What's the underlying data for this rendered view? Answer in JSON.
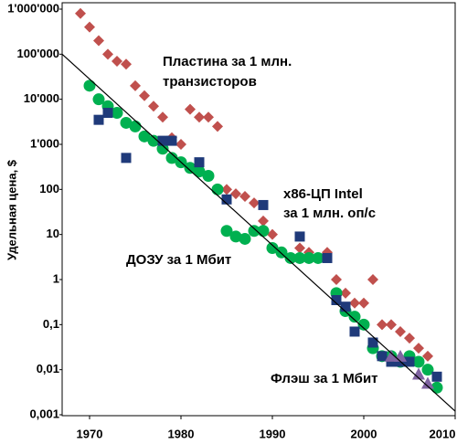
{
  "chart_data": {
    "type": "scatter",
    "ylabel": "Удельная цена, $",
    "log_y": true,
    "xlim": [
      1967,
      2010
    ],
    "ylim": [
      0.001,
      1000000
    ],
    "xticks": [
      1970,
      1980,
      1990,
      2000,
      2010
    ],
    "yticks": [
      {
        "value": 1000000,
        "label": "1'000'000"
      },
      {
        "value": 100000,
        "label": "100'000"
      },
      {
        "value": 10000,
        "label": "10'000"
      },
      {
        "value": 1000,
        "label": "1'000"
      },
      100,
      10,
      1,
      {
        "value": 0.1,
        "label": "0,1"
      },
      {
        "value": 0.01,
        "label": "0,01"
      },
      {
        "value": 0.001,
        "label": "0,001"
      }
    ],
    "annotations": [
      {
        "text": "Пластина за 1 млн.",
        "color": "#c0504d"
      },
      {
        "text": "транзисторов",
        "color": "#c0504d"
      },
      {
        "text": "x86-ЦП Intel",
        "color": "#1f3a7a"
      },
      {
        "text": "за 1 млн. оп/с",
        "color": "#1f3a7a"
      },
      {
        "text": "ДОЗУ за 1 Мбит",
        "color": "#00b050"
      },
      {
        "text": "Флэш за 1 Мбит",
        "color": "#8064a2"
      }
    ],
    "series": [
      {
        "marker": "diamond",
        "color": "#c0504d",
        "x": [
          1969,
          1970,
          1971,
          1972,
          1973,
          1974,
          1975,
          1976,
          1977,
          1978,
          1979,
          1980,
          1981,
          1982,
          1983,
          1984,
          1985,
          1986,
          1987,
          1988,
          1989,
          1990,
          1993,
          1994,
          1995,
          1996,
          1997,
          1998,
          1999,
          2000,
          2001,
          2002,
          2003,
          2004,
          2005,
          2006,
          2007
        ],
        "values": [
          800000,
          400000,
          200000,
          100000,
          70000,
          60000,
          20000,
          12000,
          7000,
          4000,
          1400,
          1000,
          6000,
          4000,
          4000,
          2500,
          100,
          80,
          70,
          50,
          20,
          10,
          5,
          4,
          3,
          4,
          1,
          0.5,
          0.3,
          0.3,
          1,
          0.1,
          0.1,
          0.07,
          0.05,
          0.03,
          0.02
        ]
      },
      {
        "marker": "circle",
        "color": "#00b050",
        "x": [
          1970,
          1971,
          1972,
          1973,
          1974,
          1975,
          1976,
          1977,
          1978,
          1979,
          1980,
          1981,
          1982,
          1983,
          1984,
          1985,
          1986,
          1987,
          1988,
          1989,
          1990,
          1991,
          1992,
          1993,
          1994,
          1995,
          1997,
          1998,
          1999,
          2000,
          2001,
          2002,
          2003,
          2004,
          2005,
          2006,
          2007,
          2008
        ],
        "values": [
          20000,
          10000,
          7000,
          5000,
          3000,
          2500,
          1500,
          1200,
          800,
          500,
          400,
          300,
          250,
          200,
          100,
          12,
          9,
          8,
          12,
          12,
          5,
          4,
          3,
          3,
          3,
          3,
          0.5,
          0.2,
          0.15,
          0.1,
          0.03,
          0.02,
          0.02,
          0.015,
          0.02,
          0.015,
          0.01,
          0.004
        ]
      },
      {
        "marker": "square",
        "color": "#1f3a7a",
        "x": [
          1971,
          1972,
          1974,
          1978,
          1979,
          1982,
          1985,
          1989,
          1993,
          1996,
          1997,
          1998,
          1999,
          2001,
          2002,
          2003,
          2004,
          2005,
          2008
        ],
        "values": [
          3500,
          5000,
          500,
          1200,
          1200,
          400,
          60,
          45,
          9,
          3,
          0.35,
          0.25,
          0.07,
          0.04,
          0.02,
          0.015,
          0.015,
          0.015,
          0.007
        ]
      },
      {
        "marker": "triangle",
        "color": "#8064a2",
        "x": [
          2003,
          2004,
          2006,
          2007
        ],
        "values": [
          0.02,
          0.02,
          0.008,
          0.005
        ]
      },
      {
        "marker": "line",
        "color": "#000000",
        "x": [
          1967,
          2010
        ],
        "values": [
          100000,
          0.0012
        ]
      }
    ]
  }
}
